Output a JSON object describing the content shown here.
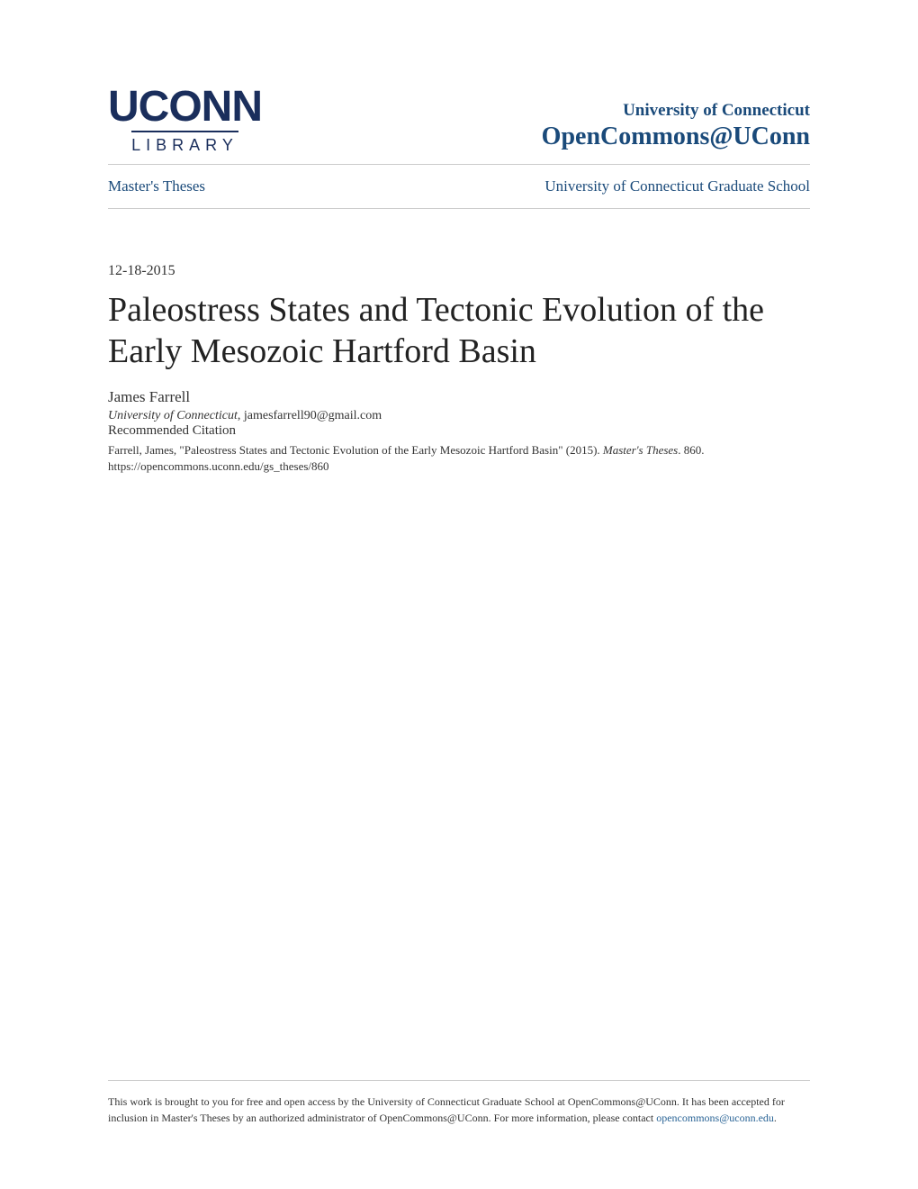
{
  "logo": {
    "main": "UCONN",
    "sub": "LIBRARY"
  },
  "header": {
    "university": "University of Connecticut",
    "repository": "OpenCommons@UConn"
  },
  "breadcrumb": {
    "left": "Master's Theses",
    "right": "University of Connecticut Graduate School"
  },
  "document": {
    "date": "12-18-2015",
    "title": "Paleostress States and Tectonic Evolution of the Early Mesozoic Hartford Basin",
    "author": "James Farrell",
    "affiliation": "University of Connecticut",
    "email": ", jamesfarrell90@gmail.com"
  },
  "citation": {
    "heading": "Recommended Citation",
    "text_part1": "Farrell, James, \"Paleostress States and Tectonic Evolution of the Early Mesozoic Hartford Basin\" (2015). ",
    "text_italic": "Master's Theses",
    "text_part2": ". 860.",
    "url": "https://opencommons.uconn.edu/gs_theses/860"
  },
  "footer": {
    "text": "This work is brought to you for free and open access by the University of Connecticut Graduate School at OpenCommons@UConn. It has been accepted for inclusion in Master's Theses by an authorized administrator of OpenCommons@UConn. For more information, please contact ",
    "link": "opencommons@uconn.edu",
    "period": "."
  },
  "colors": {
    "brand_navy": "#1a2e5c",
    "brand_blue": "#1a4a7a",
    "text_dark": "#333333",
    "link_blue": "#2a6496",
    "border_gray": "#cccccc",
    "background": "#ffffff"
  }
}
